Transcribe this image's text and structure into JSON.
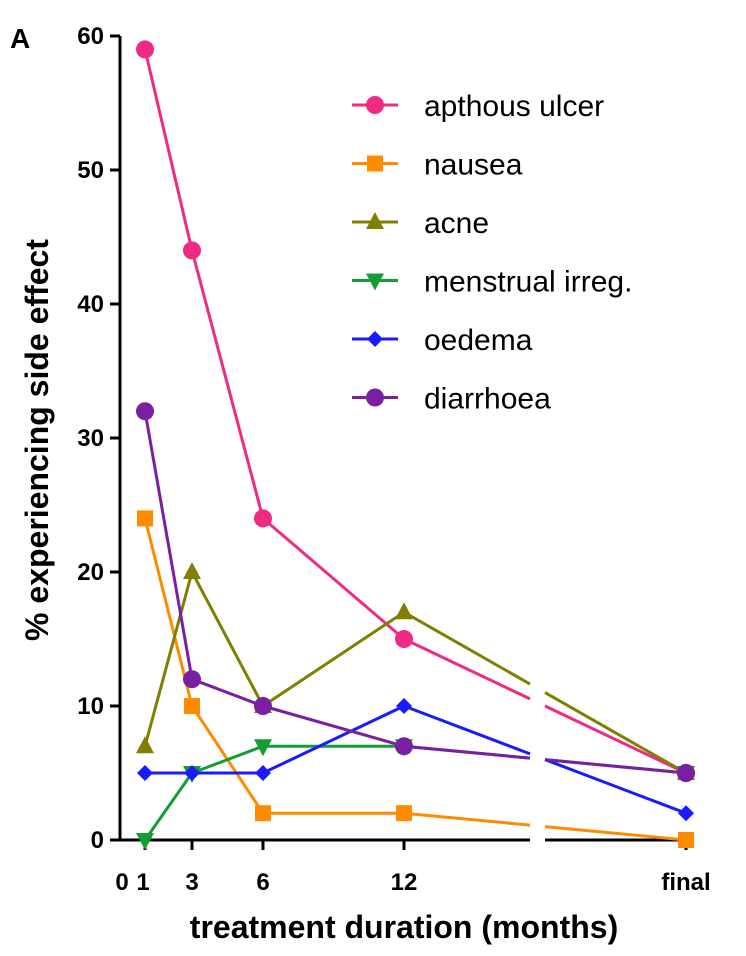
{
  "panel_label": "A",
  "chart_data": {
    "type": "line",
    "title": "",
    "xlabel": "treatment duration (months)",
    "ylabel": "% experiencing side effect",
    "x_positions": [
      1,
      3,
      6,
      12,
      24
    ],
    "x_ticks": [
      {
        "value": 0,
        "label": "0"
      },
      {
        "value": 1,
        "label": "1"
      },
      {
        "value": 3,
        "label": "3"
      },
      {
        "value": 6,
        "label": "6"
      },
      {
        "value": 12,
        "label": "12"
      },
      {
        "value": 24,
        "label": "final"
      }
    ],
    "x_axis_break": [
      17,
      17.2
    ],
    "xlim": [
      0,
      24
    ],
    "ylim": [
      0,
      60
    ],
    "y_ticks": [
      0,
      10,
      20,
      30,
      40,
      50,
      60
    ],
    "legend_position": "top-right",
    "series": [
      {
        "name": "apthous ulcer",
        "color": "#ef2a85",
        "marker": "circle",
        "values": [
          59,
          44,
          24,
          15,
          5
        ]
      },
      {
        "name": "nausea",
        "color": "#ff8c00",
        "marker": "square",
        "values": [
          24,
          10,
          2,
          2,
          0
        ]
      },
      {
        "name": "acne",
        "color": "#808000",
        "marker": "triangle-up",
        "values": [
          7,
          20,
          10,
          17,
          5
        ]
      },
      {
        "name": "menstrual irreg.",
        "color": "#139e35",
        "marker": "triangle-down",
        "values": [
          0,
          5,
          7,
          7,
          5
        ]
      },
      {
        "name": "oedema",
        "color": "#1a1aff",
        "marker": "diamond",
        "values": [
          5,
          5,
          5,
          10,
          2
        ]
      },
      {
        "name": "diarrhoea",
        "color": "#7b1fa2",
        "marker": "circle",
        "values": [
          32,
          12,
          10,
          7,
          5
        ]
      }
    ]
  }
}
